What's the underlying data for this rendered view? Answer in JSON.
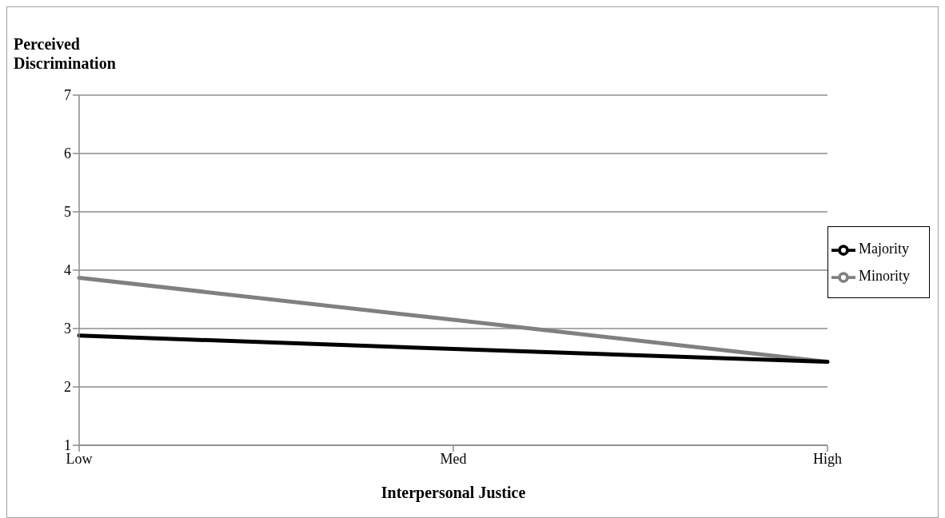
{
  "chart_data": {
    "type": "line",
    "ylabel": "Perceived Discrimination",
    "xlabel": "Interpersonal Justice",
    "categories": [
      "Low",
      "Med",
      "High"
    ],
    "series": [
      {
        "name": "Minority",
        "color": "#808080",
        "values": [
          3.87,
          3.15,
          2.43
        ]
      },
      {
        "name": "Majority",
        "color": "#000000",
        "values": [
          2.88,
          2.65,
          2.43
        ]
      }
    ],
    "ylim": [
      1,
      7
    ],
    "yticks": [
      1,
      2,
      3,
      4,
      5,
      6,
      7
    ],
    "grid": "y",
    "legend": "right",
    "marker": "none",
    "line_style": "solid"
  }
}
